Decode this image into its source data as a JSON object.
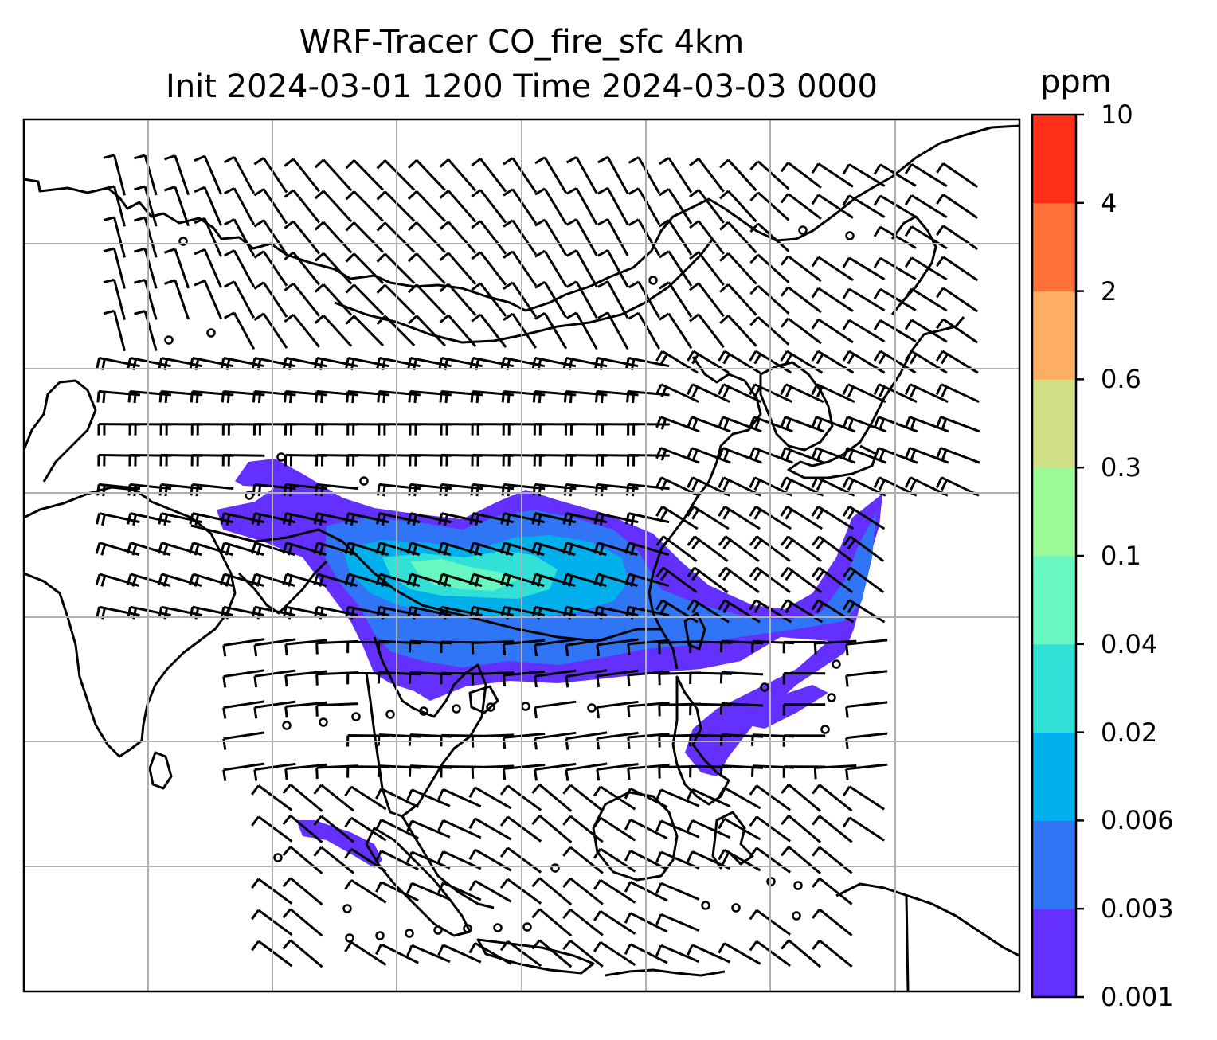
{
  "title": {
    "line1": "WRF-Tracer CO_fire_sfc 4km",
    "line2": "Init 2024-03-01 1200 Time 2024-03-03 0000"
  },
  "colorbar": {
    "unit": "ppm",
    "levels": [
      "0.001",
      "0.003",
      "0.006",
      "0.02",
      "0.04",
      "0.1",
      "0.3",
      "0.6",
      "2",
      "4",
      "10"
    ],
    "colors": [
      "#6430ff",
      "#3075f5",
      "#00b0ec",
      "#31e0d6",
      "#68f7c0",
      "#9afa98",
      "#d0e185",
      "#feae62",
      "#ff7139",
      "#ff2f1a"
    ]
  },
  "map": {
    "coastline_color": "#000000",
    "gridline_color": "#b0b0b0",
    "wind_barb_color": "#000000"
  }
}
